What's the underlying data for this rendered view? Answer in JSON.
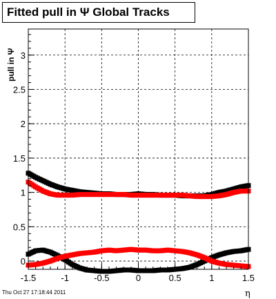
{
  "title": "Fitted pull in  Ψ   Global Tracks",
  "footer_timestamp": "Thu Oct 27 17:18:44 2011",
  "chart_data": {
    "type": "scatter",
    "title": "Fitted pull in  Ψ   Global Tracks",
    "xlabel": "η",
    "ylabel": "pull in Ψ",
    "xlim": [
      -1.5,
      1.5
    ],
    "ylim": [
      -0.12,
      3.38
    ],
    "xticks": [
      "-1.5",
      "-1",
      "-0.5",
      "0",
      "0.5",
      "1",
      "1.5"
    ],
    "yticks": [
      "0",
      "0.5",
      "1",
      "1.5",
      "2",
      "2.5",
      "3"
    ],
    "grid": true,
    "series": [
      {
        "color": "#000000",
        "x": [
          -1.5,
          -1.4,
          -1.3,
          -1.2,
          -1.1,
          -1.0,
          -0.9,
          -0.8,
          -0.7,
          -0.6,
          -0.5,
          -0.4,
          -0.3,
          -0.2,
          -0.1,
          0.0,
          0.1,
          0.2,
          0.3,
          0.4,
          0.5,
          0.6,
          0.7,
          0.8,
          0.9,
          1.0,
          1.1,
          1.2,
          1.3,
          1.4,
          1.5
        ],
        "y": [
          1.28,
          1.22,
          1.17,
          1.12,
          1.08,
          1.05,
          1.03,
          1.01,
          1.0,
          0.99,
          0.98,
          0.98,
          0.97,
          0.97,
          0.97,
          0.98,
          0.97,
          0.97,
          0.96,
          0.96,
          0.96,
          0.95,
          0.95,
          0.95,
          0.95,
          0.97,
          1.0,
          1.02,
          1.05,
          1.08,
          1.1
        ]
      },
      {
        "color": "#ff0000",
        "x": [
          -1.5,
          -1.4,
          -1.3,
          -1.2,
          -1.1,
          -1.0,
          -0.9,
          -0.8,
          -0.7,
          -0.6,
          -0.5,
          -0.4,
          -0.3,
          -0.2,
          -0.1,
          0.0,
          0.1,
          0.2,
          0.3,
          0.4,
          0.5,
          0.6,
          0.7,
          0.8,
          0.9,
          1.0,
          1.1,
          1.2,
          1.3,
          1.4,
          1.5
        ],
        "y": [
          1.15,
          1.08,
          1.02,
          0.98,
          0.96,
          0.96,
          0.96,
          0.97,
          0.97,
          0.97,
          0.97,
          0.97,
          0.97,
          0.97,
          0.96,
          0.96,
          0.96,
          0.96,
          0.96,
          0.96,
          0.96,
          0.96,
          0.95,
          0.94,
          0.94,
          0.94,
          0.95,
          0.97,
          1.0,
          1.02,
          1.02
        ]
      },
      {
        "color": "#000000",
        "x": [
          -1.5,
          -1.4,
          -1.3,
          -1.2,
          -1.1,
          -1.0,
          -0.9,
          -0.8,
          -0.7,
          -0.6,
          -0.5,
          -0.4,
          -0.3,
          -0.2,
          -0.1,
          0.0,
          0.1,
          0.2,
          0.3,
          0.4,
          0.5,
          0.6,
          0.7,
          0.8,
          0.9,
          1.0,
          1.1,
          1.2,
          1.3,
          1.4,
          1.5
        ],
        "y": [
          0.1,
          0.15,
          0.16,
          0.13,
          0.08,
          0.02,
          -0.05,
          -0.1,
          -0.13,
          -0.14,
          -0.15,
          -0.15,
          -0.14,
          -0.13,
          -0.13,
          -0.14,
          -0.14,
          -0.14,
          -0.13,
          -0.13,
          -0.12,
          -0.11,
          -0.09,
          -0.05,
          0.0,
          0.05,
          0.09,
          0.12,
          0.14,
          0.15,
          0.17
        ]
      },
      {
        "color": "#ff0000",
        "x": [
          -1.5,
          -1.4,
          -1.3,
          -1.2,
          -1.1,
          -1.0,
          -0.9,
          -0.8,
          -0.7,
          -0.6,
          -0.5,
          -0.4,
          -0.3,
          -0.2,
          -0.1,
          0.0,
          0.1,
          0.2,
          0.3,
          0.4,
          0.5,
          0.6,
          0.7,
          0.8,
          0.9,
          1.0,
          1.1,
          1.2,
          1.3,
          1.4,
          1.5
        ],
        "y": [
          -0.06,
          -0.05,
          -0.03,
          0.0,
          0.04,
          0.07,
          0.09,
          0.11,
          0.12,
          0.13,
          0.15,
          0.16,
          0.15,
          0.16,
          0.17,
          0.16,
          0.16,
          0.15,
          0.15,
          0.16,
          0.15,
          0.14,
          0.12,
          0.09,
          0.05,
          0.0,
          -0.03,
          -0.05,
          -0.06,
          -0.07,
          -0.08
        ]
      }
    ]
  }
}
